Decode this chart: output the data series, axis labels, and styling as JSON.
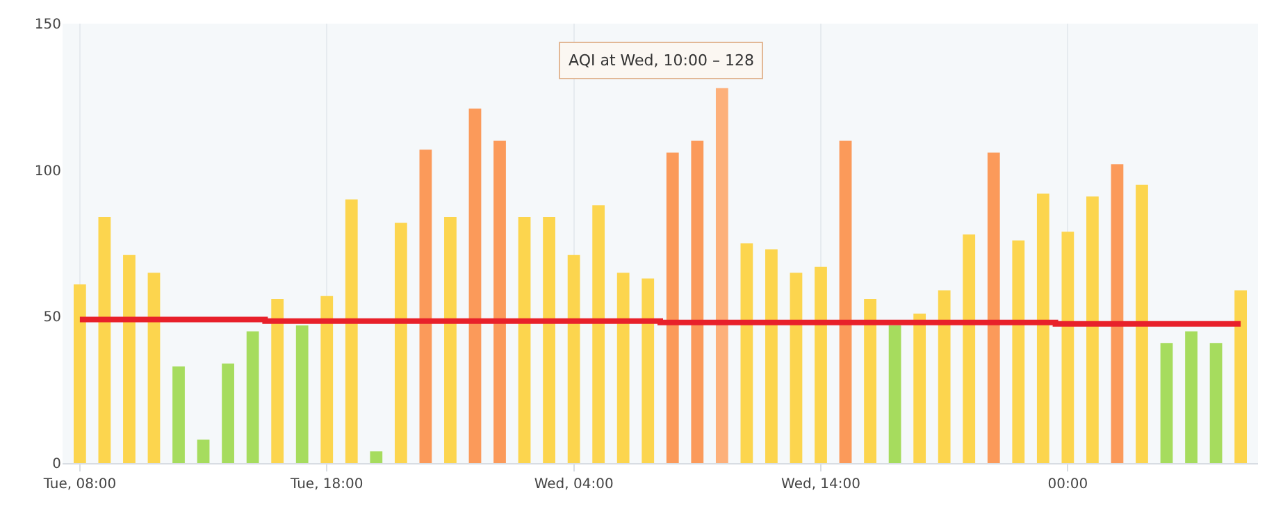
{
  "chart_data": {
    "type": "bar",
    "categories": [
      "Tue, 08:00",
      null,
      null,
      null,
      null,
      null,
      null,
      null,
      null,
      null,
      "Tue, 18:00",
      null,
      null,
      null,
      null,
      null,
      null,
      null,
      null,
      null,
      "Wed, 04:00",
      null,
      null,
      null,
      null,
      null,
      null,
      null,
      null,
      null,
      "Wed, 14:00",
      null,
      null,
      null,
      null,
      null,
      null,
      null,
      null,
      null,
      "00:00",
      null,
      null,
      null,
      null,
      null,
      null,
      null
    ],
    "series": [
      {
        "values": [
          61,
          84,
          71,
          65,
          33,
          8,
          34,
          45,
          56,
          47,
          57,
          90,
          4,
          82,
          107,
          84,
          121,
          110,
          84,
          84,
          71,
          88,
          65,
          63,
          106,
          110,
          128,
          75,
          73,
          65,
          67,
          110,
          56,
          47,
          51,
          59,
          78,
          106,
          76,
          92,
          79,
          91,
          102,
          95,
          41,
          45,
          41,
          59
        ],
        "colors": [
          "#fcd54e",
          "#fcd54e",
          "#fcd54e",
          "#fcd54e",
          "#a6dc5e",
          "#a6dc5e",
          "#a6dc5e",
          "#a6dc5e",
          "#fcd54e",
          "#a6dc5e",
          "#fcd54e",
          "#fcd54e",
          "#a6dc5e",
          "#fcd54e",
          "#fb9a5a",
          "#fcd54e",
          "#fb9a5a",
          "#fb9a5a",
          "#fcd54e",
          "#fcd54e",
          "#fcd54e",
          "#fcd54e",
          "#fcd54e",
          "#fcd54e",
          "#fb9a5a",
          "#fb9a5a",
          "#fdb07a",
          "#fcd54e",
          "#fcd54e",
          "#fcd54e",
          "#fcd54e",
          "#fb9a5a",
          "#fcd54e",
          "#a6dc5e",
          "#fcd54e",
          "#fcd54e",
          "#fcd54e",
          "#fb9a5a",
          "#fcd54e",
          "#fcd54e",
          "#fcd54e",
          "#fcd54e",
          "#fb9a5a",
          "#fcd54e",
          "#a6dc5e",
          "#a6dc5e",
          "#a6dc5e",
          "#fcd54e"
        ]
      },
      {
        "type": "step",
        "color": "#e8202a",
        "values": [
          49,
          49,
          49,
          49,
          49,
          49,
          49,
          49,
          48.5,
          48.5,
          48.5,
          48.5,
          48.5,
          48.5,
          48.5,
          48.5,
          48.5,
          48.5,
          48.5,
          48.5,
          48.5,
          48.5,
          48.5,
          48.5,
          48,
          48,
          48,
          48,
          48,
          48,
          48,
          48,
          48,
          48,
          48,
          48,
          48,
          48,
          48,
          48,
          47.5,
          47.5,
          47.5,
          47.5,
          47.5,
          47.5,
          47.5,
          47.5
        ]
      }
    ],
    "ylim": [
      0,
      150
    ],
    "yticks": [
      0,
      50,
      100,
      150
    ],
    "grid": "x",
    "annotations": [
      "AQI at Wed, 10:00 – 128"
    ]
  }
}
